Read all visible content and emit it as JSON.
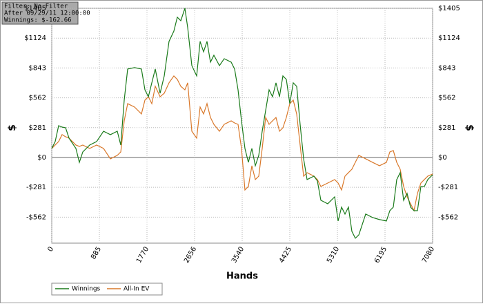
{
  "chart_data": {
    "type": "line",
    "info": [
      "Filter: No Filter",
      "After 09/29/11 12:00:00",
      "Winnings: $-162.66"
    ],
    "xlabel": "Hands",
    "ylabel": "$",
    "x": [
      0,
      64,
      128,
      192,
      257,
      321,
      449,
      513,
      577,
      705,
      834,
      962,
      1090,
      1218,
      1283,
      1347,
      1411,
      1539,
      1667,
      1732,
      1796,
      1860,
      1924,
      2014,
      2091,
      2180,
      2270,
      2334,
      2399,
      2475,
      2527,
      2604,
      2694,
      2758,
      2822,
      2886,
      2950,
      3014,
      3117,
      3206,
      3335,
      3399,
      3463,
      3527,
      3591,
      3655,
      3720,
      3784,
      3848,
      3912,
      3976,
      4040,
      4104,
      4168,
      4233,
      4297,
      4361,
      4425,
      4489,
      4553,
      4617,
      4682,
      4746,
      4874,
      4938,
      5002,
      5130,
      5259,
      5323,
      5387,
      5451,
      5515,
      5579,
      5643,
      5708,
      5836,
      5964,
      6092,
      6221,
      6285,
      6349,
      6413,
      6477,
      6541,
      6605,
      6670,
      6734,
      6798,
      6862,
      6926,
      6990,
      7080
    ],
    "series": [
      {
        "name": "Winnings",
        "color": "#1a7a1a",
        "values": [
          85,
          150,
          299,
          286,
          280,
          182,
          85,
          -46,
          52,
          117,
          150,
          247,
          215,
          247,
          117,
          540,
          833,
          846,
          833,
          637,
          572,
          703,
          833,
          605,
          768,
          1093,
          1190,
          1321,
          1288,
          1405,
          1223,
          865,
          768,
          1093,
          995,
          1093,
          898,
          963,
          865,
          930,
          898,
          833,
          637,
          345,
          85,
          -46,
          85,
          -78,
          20,
          247,
          442,
          637,
          572,
          703,
          572,
          768,
          735,
          507,
          703,
          670,
          312,
          -13,
          -208,
          -176,
          -221,
          -403,
          -436,
          -371,
          -598,
          -468,
          -533,
          -468,
          -696,
          -761,
          -729,
          -533,
          -566,
          -585,
          -598,
          -501,
          -468,
          -208,
          -143,
          -403,
          -338,
          -468,
          -501,
          -501,
          -273,
          -273,
          -208,
          -163
        ]
      },
      {
        "name": "All-In EV",
        "color": "#d9782a",
        "values": [
          85,
          117,
          150,
          215,
          195,
          182,
          117,
          104,
          117,
          85,
          117,
          85,
          -13,
          20,
          52,
          345,
          507,
          475,
          410,
          540,
          572,
          507,
          670,
          572,
          605,
          703,
          768,
          735,
          670,
          637,
          703,
          247,
          182,
          475,
          410,
          507,
          377,
          312,
          247,
          312,
          345,
          325,
          312,
          85,
          -306,
          -273,
          -78,
          -208,
          -176,
          85,
          377,
          312,
          345,
          377,
          247,
          280,
          377,
          507,
          540,
          410,
          117,
          -176,
          -143,
          -176,
          -208,
          -273,
          -241,
          -208,
          -241,
          -306,
          -176,
          -143,
          -111,
          -46,
          20,
          -13,
          -46,
          -78,
          -46,
          52,
          65,
          -46,
          -111,
          -273,
          -371,
          -436,
          -501,
          -338,
          -241,
          -208,
          -176,
          -156
        ]
      }
    ],
    "xlim": [
      0,
      7080
    ],
    "xticks": [
      0,
      885,
      1770,
      2656,
      3540,
      4425,
      5310,
      6195,
      7080
    ],
    "ylim": [
      -807,
      1405
    ],
    "yticks": [
      {
        "value": -562,
        "label": "-$562"
      },
      {
        "value": -281,
        "label": "-$281"
      },
      {
        "value": 0,
        "label": "$0"
      },
      {
        "value": 281,
        "label": "$281"
      },
      {
        "value": 562,
        "label": "$562"
      },
      {
        "value": 843,
        "label": "$843"
      },
      {
        "value": 1124,
        "label": "$1124"
      },
      {
        "value": 1405,
        "label": "$1405"
      }
    ],
    "grid": true
  }
}
